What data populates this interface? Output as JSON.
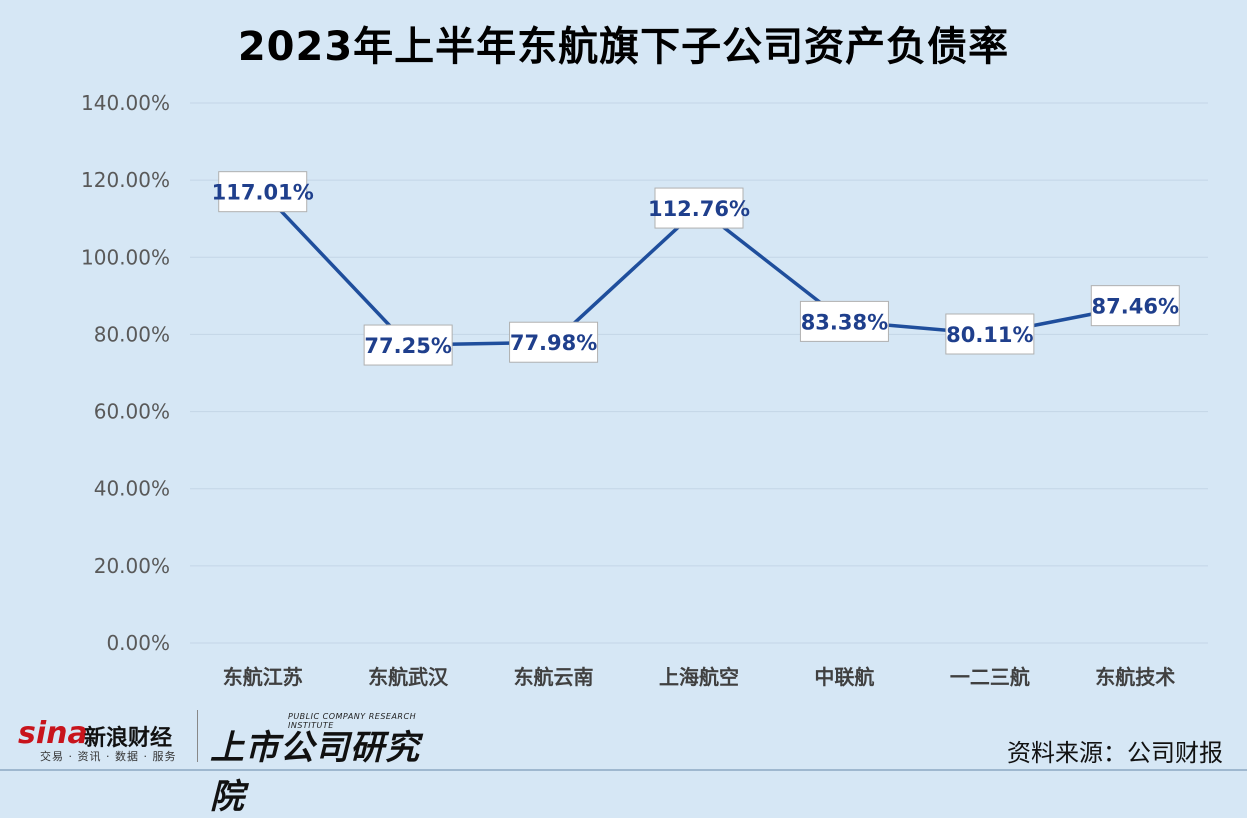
{
  "chart_data": {
    "type": "line",
    "title": "2023年上半年东航旗下子公司资产负债率",
    "categories": [
      "东航江苏",
      "东航武汉",
      "东航云南",
      "上海航空",
      "中联航",
      "一二三航",
      "东航技术"
    ],
    "values": [
      117.01,
      77.25,
      77.98,
      112.76,
      83.38,
      80.11,
      87.46
    ],
    "data_labels": [
      "117.01%",
      "77.25%",
      "77.98%",
      "112.76%",
      "83.38%",
      "80.11%",
      "87.46%"
    ],
    "ylim": [
      0,
      140
    ],
    "y_ticks": [
      "0.00%",
      "20.00%",
      "40.00%",
      "60.00%",
      "80.00%",
      "100.00%",
      "120.00%",
      "140.00%"
    ],
    "y_tick_values": [
      0,
      20,
      40,
      60,
      80,
      100,
      120,
      140
    ],
    "grid": true,
    "line_color": "#1f4e9c",
    "label_color": "#1f3f8c"
  },
  "footer": {
    "sina_word": "sina",
    "sina_cn": "新浪财经",
    "sina_sub": "交易 · 资讯 · 数据 · 服务",
    "pcri_en": "PUBLIC COMPANY RESEARCH INSTITUTE",
    "pcri_cn": "上市公司研究院",
    "source": "资料来源：公司财报"
  }
}
